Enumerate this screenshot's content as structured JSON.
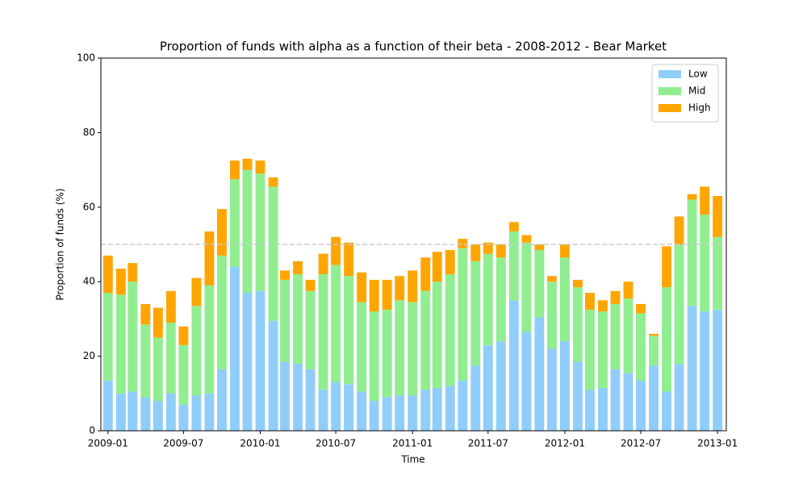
{
  "chart_data": {
    "type": "stacked_bar",
    "title": "Proportion of funds with alpha as a function of their beta - 2008-2012 - Bear Market",
    "x_label": "Time",
    "y_label": "Proportion of funds (%)",
    "x": [
      "2009-01",
      "2009-02",
      "2009-03",
      "2009-04",
      "2009-05",
      "2009-06",
      "2009-07",
      "2009-08",
      "2009-09",
      "2009-10",
      "2009-11",
      "2009-12",
      "2010-01",
      "2010-02",
      "2010-03",
      "2010-04",
      "2010-05",
      "2010-06",
      "2010-07",
      "2010-08",
      "2010-09",
      "2010-10",
      "2010-11",
      "2010-12",
      "2011-01",
      "2011-02",
      "2011-03",
      "2011-04",
      "2011-05",
      "2011-06",
      "2011-07",
      "2011-08",
      "2011-09",
      "2011-10",
      "2011-11",
      "2011-12",
      "2012-01",
      "2012-02",
      "2012-03",
      "2012-04",
      "2012-05",
      "2012-06",
      "2012-07",
      "2012-08",
      "2012-09",
      "2012-10",
      "2012-11",
      "2012-12",
      "2013-01"
    ],
    "series": [
      {
        "name": "Low",
        "color": "#90cdfa",
        "values": [
          13.5,
          10,
          10.5,
          9,
          8,
          10,
          7,
          9.5,
          10,
          16.5,
          44,
          37,
          37.5,
          29.5,
          18.5,
          18,
          16.5,
          11,
          13,
          12.5,
          10.5,
          8,
          9,
          9.5,
          9.5,
          11,
          11.5,
          12,
          13.5,
          17.5,
          23,
          24,
          35,
          26.5,
          30.5,
          22,
          24,
          18.5,
          11,
          11.5,
          16.5,
          15.5,
          13.5,
          17.5,
          10.5,
          18,
          33.5,
          32,
          32.5
        ]
      },
      {
        "name": "Mid",
        "color": "#90ee90",
        "values": [
          23.5,
          26.5,
          29.5,
          19.5,
          17,
          19,
          16,
          24,
          29,
          30.5,
          23.5,
          33,
          31.5,
          36,
          22,
          24,
          21,
          31,
          31.5,
          29,
          24,
          24,
          23.5,
          25.5,
          25,
          26.5,
          28.5,
          30,
          35.5,
          28,
          24.5,
          22.5,
          18.5,
          24,
          18,
          18,
          22.5,
          20,
          21.5,
          20.5,
          17.5,
          20,
          18,
          8,
          28,
          32,
          28.5,
          26,
          19.5
        ]
      },
      {
        "name": "High",
        "color": "#ffa500",
        "values": [
          10,
          7,
          5,
          5.5,
          8,
          8.5,
          5,
          7.5,
          14.5,
          12.5,
          5,
          3,
          3.5,
          2.5,
          2.5,
          3.5,
          3,
          5.5,
          7.5,
          9,
          8,
          8.5,
          8,
          6.5,
          8.5,
          9,
          8,
          6.5,
          2.5,
          4.5,
          3,
          3.5,
          2.5,
          2,
          1.5,
          1.5,
          3.5,
          2,
          4.5,
          3,
          3.5,
          4.5,
          2.5,
          0.5,
          11,
          7.5,
          1.5,
          7.5,
          11
        ]
      }
    ],
    "xlim": [
      "2008-12-15",
      "2013-01-22"
    ],
    "xticks": [
      "2009-01",
      "2009-07",
      "2010-01",
      "2010-07",
      "2011-01",
      "2011-07",
      "2012-01",
      "2012-07",
      "2013-01"
    ],
    "ylim": [
      0,
      100
    ],
    "yticks": [
      0,
      20,
      40,
      60,
      80,
      100
    ],
    "hline": 50,
    "hline_color": "#cccccc",
    "legend": "upper right",
    "grid": false
  }
}
